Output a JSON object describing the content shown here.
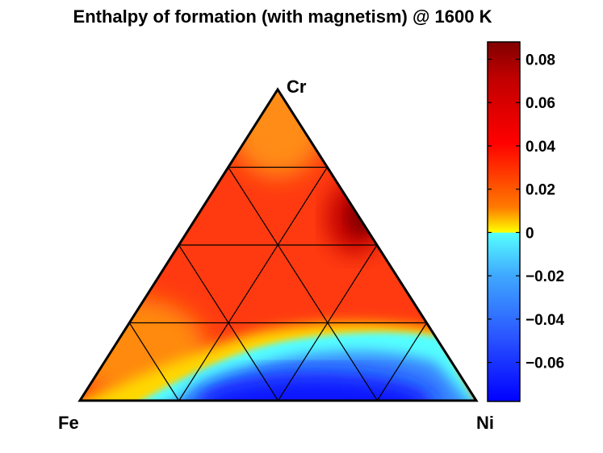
{
  "chart_data": {
    "type": "heatmap",
    "title": "Enthalpy of formation (with magnetism) @ 1600 K",
    "vertices": {
      "top": "Cr",
      "left": "Fe",
      "right": "Ni"
    },
    "colorbar": {
      "min": -0.078,
      "max": 0.088,
      "ticks": [
        0.08,
        0.06,
        0.04,
        0.02,
        0,
        -0.02,
        -0.04,
        -0.06
      ],
      "tick_labels": [
        "0.08",
        "0.06",
        "0.04",
        "0.02",
        "0",
        "−0.02",
        "−0.04",
        "−0.06"
      ],
      "colormap": "jet (discontinuous at 0)"
    },
    "grid_divisions": 4,
    "colors": {
      "blue_deep": "#0000ff",
      "blue_mid": "#2f6fff",
      "cyan_light": "#55ffff",
      "yellow": "#ffff00",
      "orange": "#ff8c00",
      "red": "#ff0000",
      "dark_red": "#800000"
    },
    "regions": [
      {
        "name": "Ni-rich / low-Cr",
        "sign": "negative",
        "approx_value": -0.07
      },
      {
        "name": "Fe-Ni edge near Fe",
        "sign": "near zero",
        "approx_value": 0.005
      },
      {
        "name": "Fe-Cr interior",
        "sign": "positive",
        "approx_value": 0.045
      },
      {
        "name": "Cr-Ni side (~60% Cr)",
        "sign": "positive maximum",
        "approx_value": 0.085
      },
      {
        "name": "Cr apex",
        "sign": "positive",
        "approx_value": 0.03
      }
    ]
  }
}
